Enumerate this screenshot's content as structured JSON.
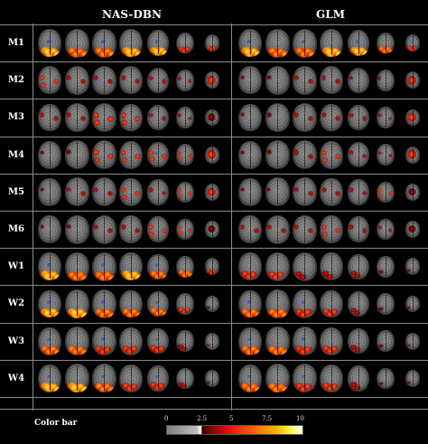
{
  "headers": {
    "left": "NAS-DBN",
    "right": "GLM"
  },
  "rows": [
    "M1",
    "M2",
    "M3",
    "M4",
    "M5",
    "M6",
    "W1",
    "W2",
    "W3",
    "W4"
  ],
  "colorbar": {
    "label": "Color bar",
    "ticks": [
      "0",
      "2.5",
      "5",
      "7.5",
      "10"
    ]
  },
  "activation_levels": {
    "nas": [
      [
        0.9,
        0.7,
        0.8,
        0.9,
        0.9,
        0.6,
        0.5
      ],
      [
        0.5,
        0.3,
        0.3,
        0.4,
        0.4,
        0.3,
        0.6
      ],
      [
        0.3,
        0.3,
        0.5,
        0.5,
        0.4,
        0.4,
        0.1
      ],
      [
        0.2,
        0.2,
        0.5,
        0.6,
        0.6,
        0.5,
        0.5
      ],
      [
        0.2,
        0.3,
        0.4,
        0.5,
        0.4,
        0.5,
        0.6
      ],
      [
        0.1,
        0.2,
        0.3,
        0.4,
        0.5,
        0.5,
        0.2
      ],
      [
        0.9,
        0.8,
        0.8,
        0.9,
        0.8,
        0.8,
        0.5
      ],
      [
        0.9,
        0.9,
        0.7,
        0.8,
        0.8,
        0.5,
        0.2
      ],
      [
        0.8,
        0.7,
        0.6,
        0.6,
        0.6,
        0.4,
        0.1
      ],
      [
        0.9,
        0.9,
        0.7,
        0.6,
        0.6,
        0.4,
        0.1
      ]
    ],
    "glm": [
      [
        0.9,
        0.7,
        0.8,
        0.9,
        0.9,
        0.8,
        0.6
      ],
      [
        0.2,
        0.2,
        0.4,
        0.3,
        0.2,
        0.2,
        0.6
      ],
      [
        0.1,
        0.2,
        0.3,
        0.4,
        0.3,
        0.3,
        0.5
      ],
      [
        0.1,
        0.2,
        0.4,
        0.5,
        0.4,
        0.4,
        0.5
      ],
      [
        0.1,
        0.1,
        0.3,
        0.4,
        0.4,
        0.5,
        0.1
      ],
      [
        0.3,
        0.3,
        0.4,
        0.5,
        0.4,
        0.3,
        0.2
      ],
      [
        0.5,
        0.5,
        0.4,
        0.4,
        0.4,
        0.2,
        0.1
      ],
      [
        0.8,
        0.8,
        0.6,
        0.5,
        0.3,
        0.2,
        0.1
      ],
      [
        0.8,
        0.8,
        0.6,
        0.5,
        0.4,
        0.2,
        0.1
      ],
      [
        0.8,
        0.8,
        0.6,
        0.5,
        0.4,
        0.2,
        0.1
      ]
    ]
  }
}
